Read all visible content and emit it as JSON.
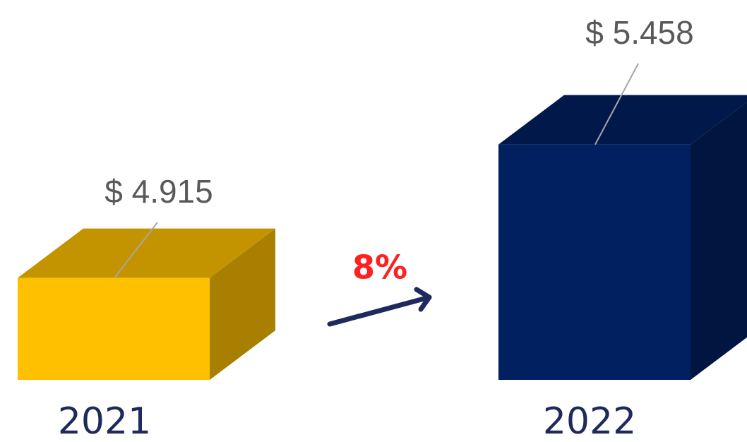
{
  "chart_data": {
    "type": "bar",
    "categories": [
      "2021",
      "2022"
    ],
    "values": [
      4.915,
      5.458
    ],
    "value_labels": [
      "$ 4.915",
      "$ 5.458"
    ],
    "colors": [
      "#ffc000",
      "#002060"
    ],
    "ylim": [
      4.5,
      5.5
    ],
    "annotation": "8%"
  }
}
